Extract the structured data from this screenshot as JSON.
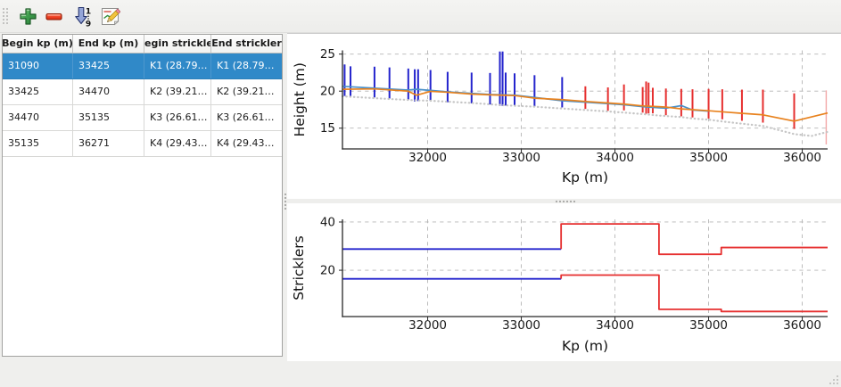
{
  "toolbar": {
    "buttons": [
      {
        "name": "add",
        "icon": "plus-icon",
        "tooltip": "Add"
      },
      {
        "name": "remove",
        "icon": "minus-icon",
        "tooltip": "Remove"
      },
      {
        "name": "sort",
        "icon": "sort-numeric-icon",
        "tooltip": "Sort"
      },
      {
        "name": "edit",
        "icon": "edit-icon",
        "tooltip": "Edit"
      }
    ]
  },
  "table": {
    "columns": [
      "Begin kp (m)",
      "End kp (m)",
      "Begin strickler",
      "End strickler"
    ],
    "column_keys": [
      "begin-kp",
      "end-kp",
      "begin-strickler",
      "end-strickler"
    ],
    "rows": [
      [
        "31090",
        "33425",
        "K1 (28.79…",
        "K1 (28.79…"
      ],
      [
        "33425",
        "34470",
        "K2 (39.21…",
        "K2 (39.21…"
      ],
      [
        "34470",
        "35135",
        "K3 (26.61…",
        "K3 (26.61…"
      ],
      [
        "35135",
        "36271",
        "K4 (29.43…",
        "K4 (29.43…"
      ]
    ],
    "selected_row_index": 0,
    "selection_color": "#3089c8"
  },
  "chart_data": [
    {
      "type": "line",
      "title": "",
      "xlabel": "Kp (m)",
      "ylabel": "Height (m)",
      "xlim": [
        31090,
        36271
      ],
      "ylim": [
        12.2,
        25.5
      ],
      "xticks": [
        32000,
        33000,
        34000,
        35000,
        36000
      ],
      "yticks": [
        15,
        20,
        25
      ],
      "grid": true,
      "profile_markers": [
        {
          "name": "cross-sections-selected-reach",
          "color": "#2424cd",
          "width": 2,
          "lines": [
            [
              31113,
              19.35,
              23.6
            ],
            [
              31176,
              19.3,
              23.35
            ],
            [
              31432,
              19.15,
              23.3
            ],
            [
              31592,
              19.0,
              23.2
            ],
            [
              31793,
              18.85,
              23.05
            ],
            [
              31862,
              18.6,
              22.95
            ],
            [
              31898,
              18.65,
              22.95
            ],
            [
              32030,
              18.7,
              22.85
            ],
            [
              32213,
              18.5,
              22.6
            ],
            [
              32469,
              18.35,
              22.5
            ],
            [
              32666,
              18.2,
              22.45
            ],
            [
              32771,
              18.0,
              25.35
            ],
            [
              32800,
              18.0,
              25.35
            ],
            [
              32833,
              18.05,
              22.5
            ],
            [
              32928,
              18.1,
              22.4
            ],
            [
              33141,
              17.95,
              22.15
            ],
            [
              33436,
              17.8,
              21.9
            ]
          ]
        },
        {
          "name": "cross-sections-other-reach",
          "color": "#e62f2f",
          "width": 2,
          "lines": [
            [
              33684,
              17.6,
              20.65
            ],
            [
              33925,
              17.35,
              20.5
            ],
            [
              34096,
              17.4,
              20.9
            ],
            [
              34296,
              17.1,
              20.55
            ],
            [
              34333,
              16.95,
              21.3
            ],
            [
              34359,
              17.0,
              21.15
            ],
            [
              34404,
              17.0,
              20.45
            ],
            [
              34544,
              16.75,
              20.35
            ],
            [
              34708,
              16.6,
              20.3
            ],
            [
              34828,
              16.45,
              20.25
            ],
            [
              35000,
              16.3,
              20.3
            ],
            [
              35146,
              16.2,
              20.25
            ],
            [
              35356,
              16.0,
              20.2
            ],
            [
              35580,
              15.75,
              20.2
            ],
            [
              35914,
              14.9,
              19.7
            ]
          ]
        },
        {
          "name": "cross-section-faded",
          "color": "#f2a8a8",
          "width": 1.4,
          "lines": [
            [
              36256,
              12.8,
              20.1
            ]
          ]
        }
      ],
      "series": [
        {
          "name": "height-line-blue",
          "color": "#4a90c9",
          "style": "solid",
          "width": 1.7,
          "points": [
            [
              31090,
              20.65
            ],
            [
              31430,
              20.4
            ],
            [
              31790,
              20.15
            ],
            [
              31880,
              20.25
            ],
            [
              32030,
              20.1
            ],
            [
              32210,
              19.9
            ],
            [
              32470,
              19.7
            ],
            [
              32670,
              19.55
            ],
            [
              32800,
              19.5
            ],
            [
              32930,
              19.45
            ],
            [
              33140,
              19.15
            ],
            [
              33440,
              18.7
            ],
            [
              33690,
              18.5
            ],
            [
              33930,
              18.3
            ],
            [
              34100,
              18.15
            ],
            [
              34300,
              17.9
            ],
            [
              34470,
              17.75
            ],
            [
              34545,
              17.7
            ],
            [
              34710,
              18.05
            ],
            [
              34830,
              17.45
            ],
            [
              35000,
              17.3
            ]
          ]
        },
        {
          "name": "height-line-orange",
          "color": "#e8821e",
          "style": "solid",
          "width": 1.7,
          "points": [
            [
              31090,
              20.25
            ],
            [
              31430,
              20.3
            ],
            [
              31790,
              20.0
            ],
            [
              31880,
              19.45
            ],
            [
              32030,
              19.97
            ],
            [
              32210,
              19.85
            ],
            [
              32470,
              19.6
            ],
            [
              32670,
              19.5
            ],
            [
              32800,
              19.45
            ],
            [
              32930,
              19.4
            ],
            [
              33140,
              19.05
            ],
            [
              33440,
              18.85
            ],
            [
              33690,
              18.6
            ],
            [
              33930,
              18.4
            ],
            [
              34100,
              18.25
            ],
            [
              34300,
              18.0
            ],
            [
              34470,
              17.9
            ],
            [
              34545,
              17.85
            ],
            [
              34710,
              17.6
            ],
            [
              34830,
              17.5
            ],
            [
              35000,
              17.35
            ],
            [
              35150,
              17.2
            ],
            [
              35360,
              17.0
            ],
            [
              35580,
              16.8
            ],
            [
              35915,
              15.95
            ],
            [
              36271,
              17.05
            ]
          ]
        },
        {
          "name": "bed-line-dotted",
          "color": "#c6c6c6",
          "style": "dotted",
          "width": 2.2,
          "points": [
            [
              31090,
              19.3
            ],
            [
              31500,
              19.0
            ],
            [
              31880,
              18.75
            ],
            [
              32030,
              18.7
            ],
            [
              32470,
              18.4
            ],
            [
              32800,
              18.1
            ],
            [
              33140,
              17.9
            ],
            [
              33440,
              17.65
            ],
            [
              33690,
              17.45
            ],
            [
              33930,
              17.25
            ],
            [
              34100,
              17.1
            ],
            [
              34300,
              16.9
            ],
            [
              34470,
              16.7
            ],
            [
              34710,
              16.5
            ],
            [
              34830,
              16.3
            ],
            [
              35000,
              16.15
            ],
            [
              35150,
              15.9
            ],
            [
              35360,
              15.6
            ],
            [
              35580,
              15.3
            ],
            [
              35915,
              14.2
            ],
            [
              36100,
              13.95
            ],
            [
              36271,
              14.5
            ]
          ]
        }
      ]
    },
    {
      "type": "step",
      "title": "",
      "xlabel": "Kp (m)",
      "ylabel": "Stricklers",
      "xlim": [
        31090,
        36271
      ],
      "ylim": [
        0.8,
        41.1
      ],
      "xticks": [
        32000,
        33000,
        34000,
        35000,
        36000
      ],
      "yticks": [
        20,
        40
      ],
      "grid": true,
      "series": [
        {
          "name": "strickler-major-selected",
          "color": "#2424cd",
          "style": "solid",
          "width": 1.8,
          "points": [
            [
              31090,
              28.79
            ],
            [
              33425,
              28.79
            ]
          ]
        },
        {
          "name": "strickler-major-others",
          "color": "#e62f2f",
          "style": "solid",
          "width": 1.8,
          "points": [
            [
              33425,
              28.79
            ],
            [
              33425,
              39.21
            ],
            [
              34470,
              39.21
            ],
            [
              34470,
              26.61
            ],
            [
              35135,
              26.61
            ],
            [
              35135,
              29.43
            ],
            [
              36271,
              29.43
            ]
          ]
        },
        {
          "name": "strickler-minor-selected",
          "color": "#2424cd",
          "style": "solid",
          "width": 1.8,
          "points": [
            [
              31090,
              16.45
            ],
            [
              33425,
              16.45
            ]
          ]
        },
        {
          "name": "strickler-minor-others",
          "color": "#e62f2f",
          "style": "solid",
          "width": 1.8,
          "points": [
            [
              33425,
              16.45
            ],
            [
              33425,
              18.0
            ],
            [
              34470,
              18.0
            ],
            [
              34470,
              3.8
            ],
            [
              35135,
              3.8
            ],
            [
              35135,
              2.9
            ],
            [
              36271,
              2.9
            ]
          ]
        }
      ]
    }
  ]
}
